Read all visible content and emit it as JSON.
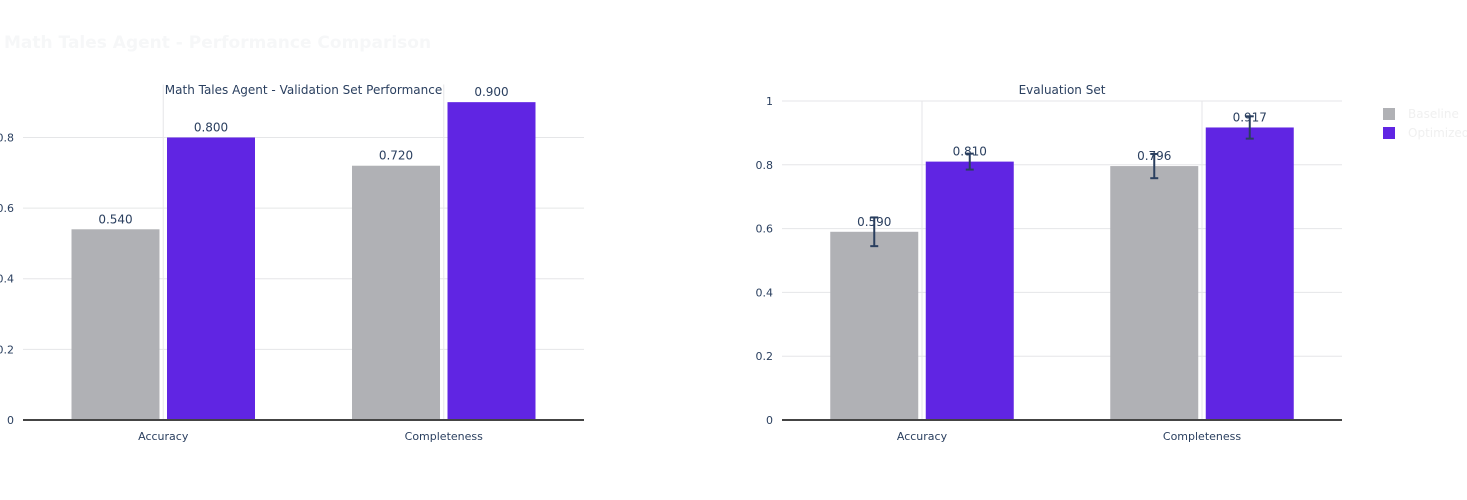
{
  "title": "Math Tales Agent - Performance Comparison",
  "legend": [
    {
      "name": "Baseline",
      "color": "#b0b1b5"
    },
    {
      "name": "Optimized",
      "color": "#6025e3"
    }
  ],
  "chart_data": [
    {
      "type": "bar",
      "title": "Math Tales Agent - Validation Set Performance",
      "categories": [
        "Accuracy",
        "Completeness"
      ],
      "ylim": [
        0,
        0.95
      ],
      "yticks": [
        0,
        0.2,
        0.4,
        0.6,
        0.8
      ],
      "ytick_labels": [
        "0",
        "0.2",
        "0.4",
        "0.6",
        "0.8"
      ],
      "series": [
        {
          "name": "Baseline",
          "values": [
            0.54,
            0.72
          ],
          "labels": [
            "0.540",
            "0.720"
          ],
          "color": "#b0b1b5",
          "error": [
            0,
            0
          ]
        },
        {
          "name": "Optimized",
          "values": [
            0.8,
            0.9
          ],
          "labels": [
            "0.800",
            "0.900"
          ],
          "color": "#6025e3",
          "error": [
            0,
            0
          ]
        }
      ],
      "grid": true
    },
    {
      "type": "bar",
      "title": "Evaluation Set",
      "categories": [
        "Accuracy",
        "Completeness"
      ],
      "ylim": [
        0,
        1.0
      ],
      "yticks": [
        0,
        0.2,
        0.4,
        0.6,
        0.8,
        1.0
      ],
      "ytick_labels": [
        "0",
        "0.2",
        "0.4",
        "0.6",
        "0.8",
        "1"
      ],
      "series": [
        {
          "name": "Baseline",
          "values": [
            0.59,
            0.796
          ],
          "labels": [
            "0.590",
            "0.796"
          ],
          "color": "#b0b1b5",
          "error": [
            0.045,
            0.038
          ]
        },
        {
          "name": "Optimized",
          "values": [
            0.81,
            0.917
          ],
          "labels": [
            "0.810",
            "0.917"
          ],
          "color": "#6025e3",
          "error": [
            0.025,
            0.035
          ]
        }
      ],
      "grid": true
    }
  ]
}
